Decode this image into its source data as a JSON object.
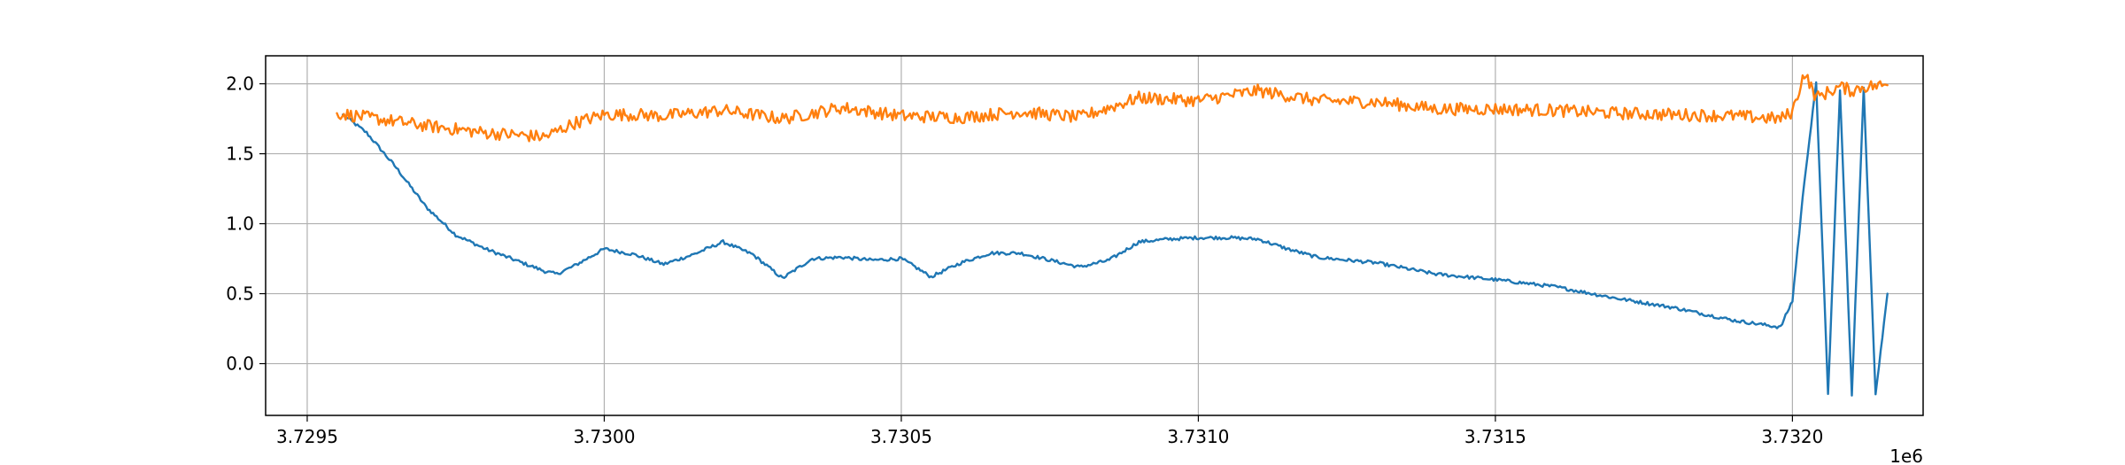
{
  "chart_data": {
    "type": "line",
    "title": "",
    "xlabel": "",
    "ylabel": "",
    "x_offset_label": "1e6",
    "xlim": [
      3.72943,
      3.73222
    ],
    "ylim": [
      -0.37,
      2.2
    ],
    "grid": true,
    "legend": "none",
    "x_ticks": [
      3.7295,
      3.73,
      3.7305,
      3.731,
      3.7315,
      3.732
    ],
    "x_tick_labels": [
      "3.7295",
      "3.7300",
      "3.7305",
      "3.7310",
      "3.7315",
      "3.7320"
    ],
    "y_ticks": [
      0.0,
      0.5,
      1.0,
      1.5,
      2.0
    ],
    "y_tick_labels": [
      "0.0",
      "0.5",
      "1.0",
      "1.5",
      "2.0"
    ],
    "series": [
      {
        "color": "#1f77b4",
        "noise": 0.012,
        "x": [
          3.72956,
          3.7296,
          3.72965,
          3.7297,
          3.72975,
          3.7298,
          3.72985,
          3.7299,
          3.72992,
          3.72995,
          3.73,
          3.73005,
          3.7301,
          3.73015,
          3.7302,
          3.73025,
          3.7303,
          3.73035,
          3.7304,
          3.73045,
          3.7305,
          3.73052,
          3.73055,
          3.7306,
          3.73065,
          3.7307,
          3.73075,
          3.7308,
          3.73085,
          3.7309,
          3.73095,
          3.731,
          3.73105,
          3.7311,
          3.73115,
          3.7312,
          3.7313,
          3.7314,
          3.7315,
          3.7316,
          3.7317,
          3.7318,
          3.7319,
          3.73198,
          3.732,
          3.73202,
          3.73204,
          3.73206,
          3.73208,
          3.7321,
          3.73212,
          3.73214,
          3.73216
        ],
        "y": [
          1.78,
          1.65,
          1.4,
          1.12,
          0.92,
          0.82,
          0.74,
          0.66,
          0.64,
          0.7,
          0.82,
          0.78,
          0.71,
          0.78,
          0.87,
          0.78,
          0.61,
          0.75,
          0.76,
          0.74,
          0.75,
          0.7,
          0.62,
          0.72,
          0.79,
          0.79,
          0.74,
          0.69,
          0.74,
          0.87,
          0.89,
          0.9,
          0.9,
          0.89,
          0.82,
          0.76,
          0.72,
          0.64,
          0.6,
          0.55,
          0.47,
          0.4,
          0.31,
          0.26,
          0.45,
          1.3,
          2.0,
          -0.22,
          1.95,
          -0.22,
          1.97,
          -0.22,
          0.5
        ]
      },
      {
        "color": "#ff7f0e",
        "noise": 0.045,
        "x": [
          3.72955,
          3.7296,
          3.7297,
          3.7298,
          3.7299,
          3.72995,
          3.73,
          3.73005,
          3.7301,
          3.7302,
          3.7303,
          3.7304,
          3.7305,
          3.7306,
          3.7307,
          3.7308,
          3.7309,
          3.731,
          3.7311,
          3.7312,
          3.7313,
          3.7314,
          3.7315,
          3.7316,
          3.7317,
          3.7318,
          3.7319,
          3.73198,
          3.732,
          3.73202,
          3.73204,
          3.73208,
          3.7321,
          3.73212,
          3.73216
        ],
        "y": [
          1.79,
          1.76,
          1.7,
          1.65,
          1.62,
          1.72,
          1.78,
          1.78,
          1.77,
          1.81,
          1.75,
          1.83,
          1.77,
          1.76,
          1.8,
          1.76,
          1.9,
          1.88,
          1.95,
          1.88,
          1.87,
          1.82,
          1.82,
          1.81,
          1.79,
          1.78,
          1.77,
          1.75,
          1.8,
          2.08,
          1.9,
          1.98,
          1.95,
          1.98,
          1.99
        ]
      }
    ]
  }
}
